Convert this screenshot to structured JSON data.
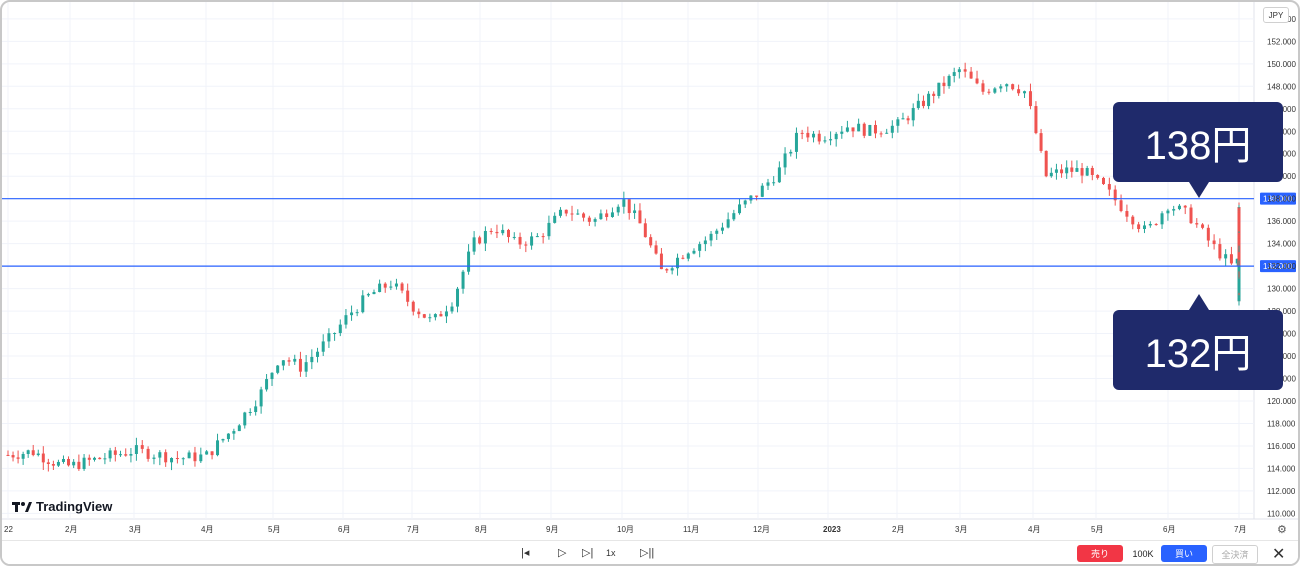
{
  "currency": "JPY",
  "brand": "TradingView",
  "colors": {
    "up": "#26a69a",
    "down": "#ef5350",
    "hline": "#2962ff",
    "callout": "#1f2a6b"
  },
  "callouts": {
    "high": "138円",
    "low": "132円"
  },
  "toolbar": {
    "play_controls": [
      "|◂",
      "▷",
      "▷|",
      "1x",
      "▷||"
    ],
    "sell_label": "売り",
    "qty_label": "100K",
    "buy_label": "買い",
    "close_all_label": "全決済",
    "close_icon": "close-icon"
  },
  "chart_data": {
    "type": "candlestick",
    "y_axis_labels": [
      "110.000",
      "112.000",
      "114.000",
      "116.000",
      "118.000",
      "120.000",
      "122.000",
      "124.000",
      "126.000",
      "128.000",
      "130.000",
      "132.000",
      "134.000",
      "136.000",
      "138.000",
      "140.000",
      "142.000",
      "144.000",
      "146.000",
      "148.000",
      "150.000",
      "152.000",
      "154.000"
    ],
    "ylim": [
      109.5,
      155.5
    ],
    "x_labels": [
      "22",
      "2月",
      "3月",
      "4月",
      "5月",
      "6月",
      "7月",
      "8月",
      "9月",
      "10月",
      "11月",
      "12月",
      "2023",
      "2月",
      "3月",
      "4月",
      "5月",
      "6月",
      "7月"
    ],
    "horizontal_lines": [
      {
        "value": 138,
        "label": "138.000"
      },
      {
        "value": 132,
        "label": "132.000"
      }
    ],
    "close_path": [
      [
        0,
        115.2
      ],
      [
        0.4,
        115.5
      ],
      [
        0.8,
        114.4
      ],
      [
        1.0,
        114.2
      ],
      [
        1.4,
        114.8
      ],
      [
        2.0,
        115.6
      ],
      [
        2.6,
        114.9
      ],
      [
        3.0,
        115.1
      ],
      [
        3.4,
        117.5
      ],
      [
        3.8,
        120.5
      ],
      [
        4.1,
        124.0
      ],
      [
        4.4,
        123.0
      ],
      [
        4.8,
        125.5
      ],
      [
        5.1,
        127.8
      ],
      [
        5.4,
        129.5
      ],
      [
        5.7,
        130.5
      ],
      [
        6.0,
        128.5
      ],
      [
        6.3,
        127.0
      ],
      [
        6.6,
        129.0
      ],
      [
        6.9,
        134.0
      ],
      [
        7.2,
        135.5
      ],
      [
        7.5,
        134.0
      ],
      [
        7.8,
        134.5
      ],
      [
        8.2,
        137.0
      ],
      [
        8.6,
        136.0
      ],
      [
        9.0,
        138.0
      ],
      [
        9.3,
        135.5
      ],
      [
        9.6,
        131.5
      ],
      [
        10.0,
        133.5
      ],
      [
        10.3,
        134.5
      ],
      [
        10.7,
        137.0
      ],
      [
        11.0,
        138.5
      ],
      [
        11.3,
        140.5
      ],
      [
        11.6,
        144.0
      ],
      [
        11.9,
        143.5
      ],
      [
        12.3,
        144.5
      ],
      [
        12.6,
        144.0
      ],
      [
        13.0,
        144.5
      ],
      [
        13.4,
        146.5
      ],
      [
        13.7,
        148.0
      ],
      [
        14.0,
        149.5
      ],
      [
        14.3,
        147.5
      ],
      [
        14.6,
        148.5
      ],
      [
        14.9,
        147.5
      ],
      [
        15.2,
        140.0
      ],
      [
        15.5,
        140.5
      ],
      [
        15.8,
        140.5
      ],
      [
        16.1,
        139.0
      ],
      [
        16.4,
        137.0
      ],
      [
        16.7,
        135.0
      ],
      [
        17.0,
        137.5
      ],
      [
        17.3,
        136.5
      ],
      [
        17.6,
        134.0
      ],
      [
        17.9,
        132.0
      ],
      [
        18.2,
        133.5
      ],
      [
        18.5,
        130.0
      ],
      [
        18.8,
        131.5
      ],
      [
        19.1,
        129.5
      ],
      [
        19.4,
        130.0
      ],
      [
        19.7,
        128.5
      ],
      [
        20.0,
        130.5
      ],
      [
        20.3,
        129.5
      ],
      [
        20.6,
        130.5
      ],
      [
        20.9,
        131.0
      ],
      [
        21.2,
        129.5
      ],
      [
        21.5,
        131.5
      ],
      [
        21.8,
        132.5
      ],
      [
        22.1,
        134.0
      ],
      [
        22.4,
        134.5
      ],
      [
        22.7,
        135.0
      ],
      [
        23.0,
        136.5
      ],
      [
        23.3,
        137.0
      ],
      [
        23.6,
        136.0
      ],
      [
        23.9,
        134.0
      ],
      [
        24.2,
        133.0
      ],
      [
        24.4,
        131.5
      ]
    ]
  }
}
